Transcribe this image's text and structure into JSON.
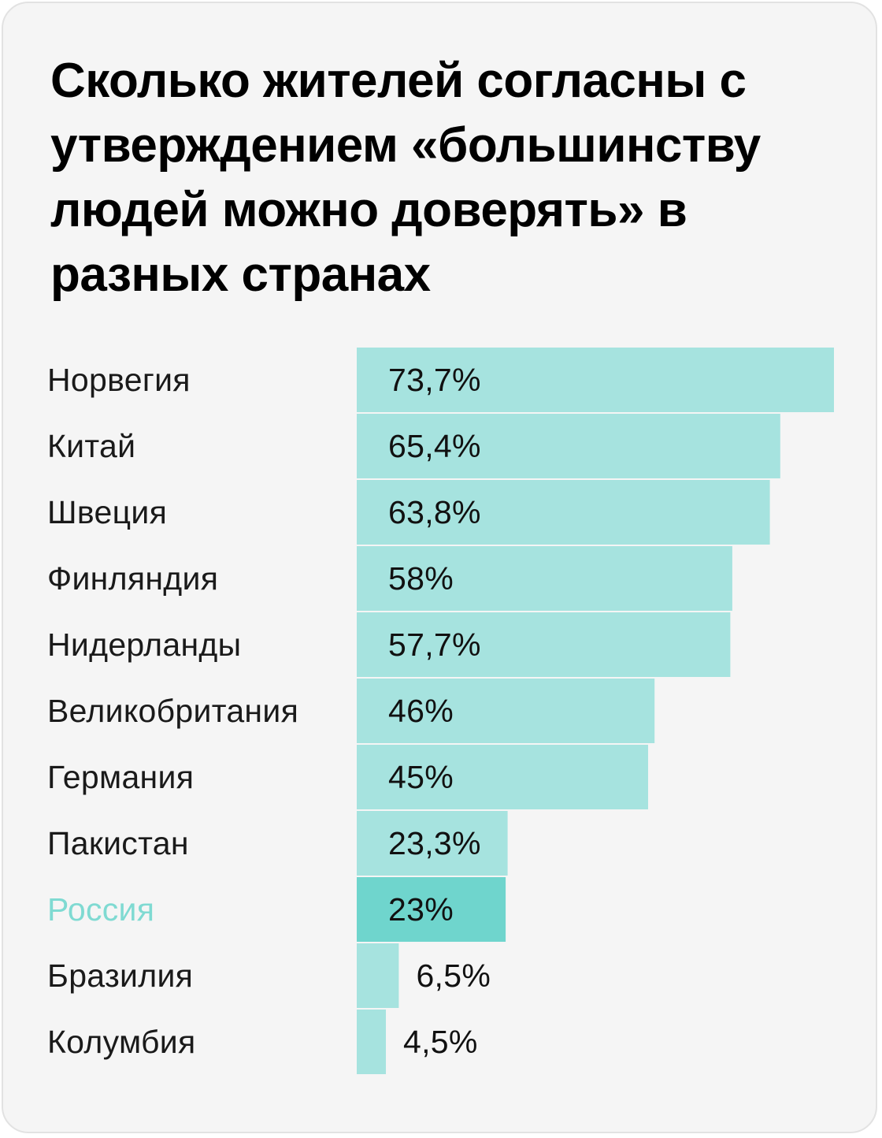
{
  "title": "Сколько жителей согласны с утверждением «большинству людей можно доверять» в разных странах",
  "colors": {
    "bar": "#a6e3df",
    "bar_highlight": "#6fd5cd",
    "label_highlight": "#7fdad2",
    "background": "#f5f5f5"
  },
  "chart_data": {
    "type": "bar",
    "orientation": "horizontal",
    "title": "Сколько жителей согласны с утверждением «большинству людей можно доверять» в разных странах",
    "categories": [
      "Норвегия",
      "Китай",
      "Швеция",
      "Финляндия",
      "Нидерланды",
      "Великобритания",
      "Германия",
      "Пакистан",
      "Россия",
      "Бразилия",
      "Колумбия"
    ],
    "values": [
      73.7,
      65.4,
      63.8,
      58,
      57.7,
      46,
      45,
      23.3,
      23,
      6.5,
      4.5
    ],
    "value_labels": [
      "73,7%",
      "65,4%",
      "63,8%",
      "58%",
      "57,7%",
      "46%",
      "45%",
      "23,3%",
      "23%",
      "6,5%",
      "4,5%"
    ],
    "unit": "%",
    "highlight": "Россия",
    "xlim": [
      0,
      73.7
    ],
    "grid": false,
    "legend": "none"
  }
}
